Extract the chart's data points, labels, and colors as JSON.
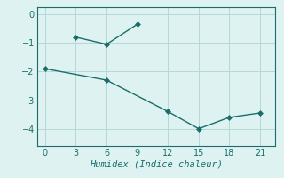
{
  "line1_x": [
    3,
    6,
    9
  ],
  "line1_y": [
    -0.8,
    -1.05,
    -0.35
  ],
  "line2_x": [
    0,
    6,
    12,
    15,
    18,
    21
  ],
  "line2_y": [
    -1.9,
    -2.3,
    -3.4,
    -4.0,
    -3.6,
    -3.45
  ],
  "color": "#1a6e6a",
  "xlabel": "Humidex (Indice chaleur)",
  "ylim": [
    -4.6,
    0.25
  ],
  "xlim": [
    -0.8,
    22.5
  ],
  "xticks": [
    0,
    3,
    6,
    9,
    12,
    15,
    18,
    21
  ],
  "yticks": [
    0,
    -1,
    -2,
    -3,
    -4
  ],
  "bg_color": "#dff2f2",
  "grid_color": "#b5d8d8",
  "marker": "D",
  "marker_size": 3,
  "line_width": 1.0
}
